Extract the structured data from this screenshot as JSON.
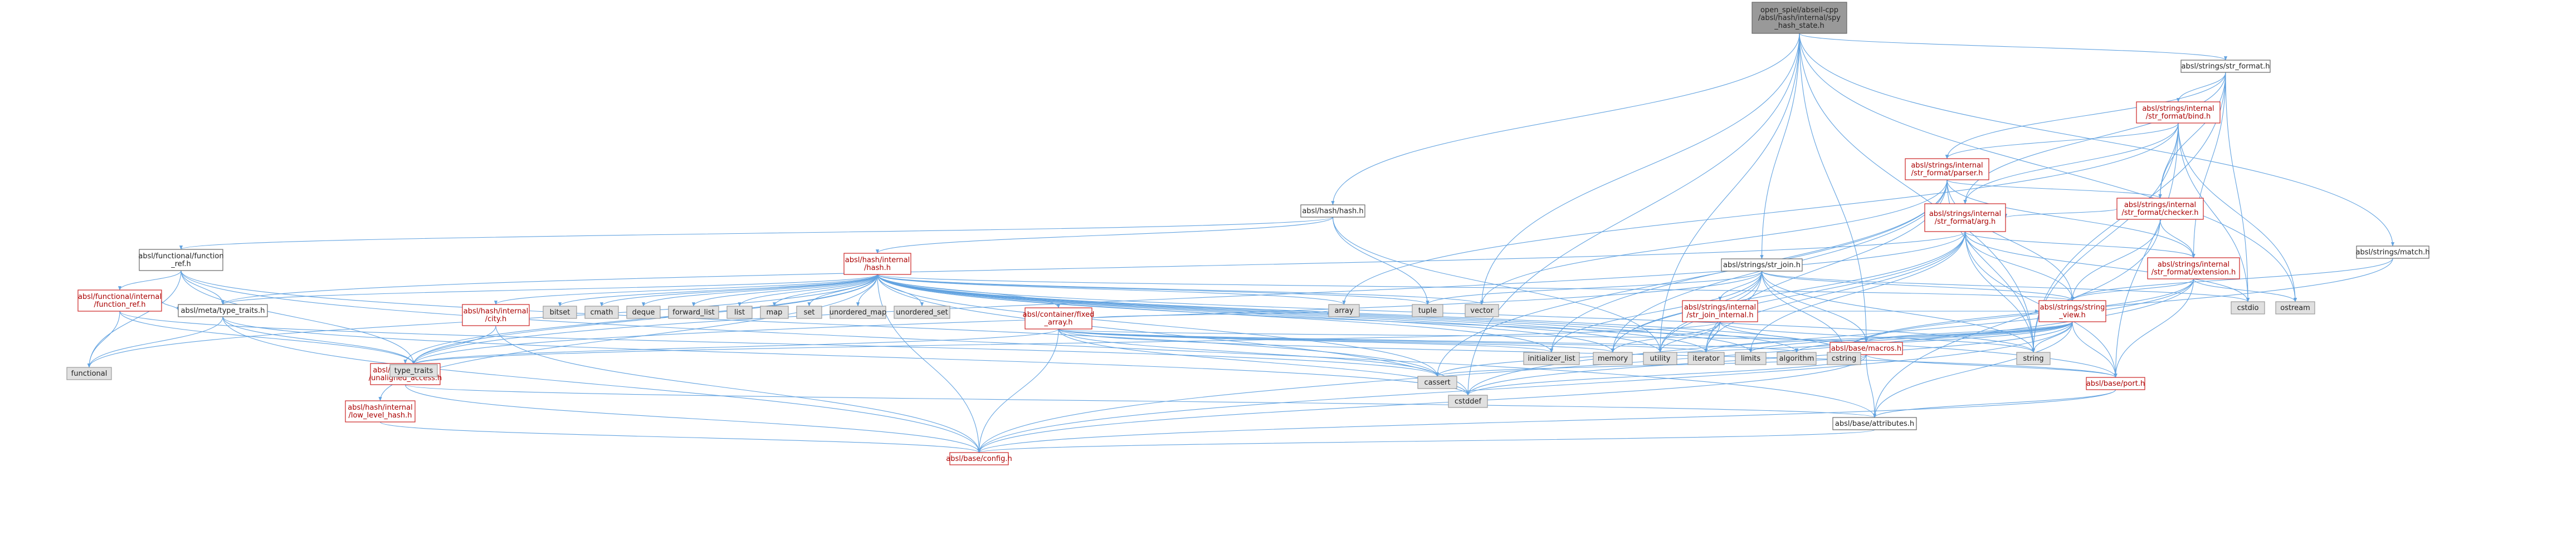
{
  "diagram": {
    "title": "",
    "nodes": [
      {
        "id": "root",
        "lines": [
          "open_spiel/abseil-cpp",
          "/absl/hash/internal/spy",
          "_hash_state.h"
        ],
        "kind": "root"
      },
      {
        "id": "str_format_h",
        "lines": [
          "absl/strings/str_format.h"
        ],
        "kind": "plain"
      },
      {
        "id": "bind_h",
        "lines": [
          "absl/strings/internal",
          "/str_format/bind.h"
        ],
        "kind": "red"
      },
      {
        "id": "parser_h",
        "lines": [
          "absl/strings/internal",
          "/str_format/parser.h"
        ],
        "kind": "red"
      },
      {
        "id": "checker_h",
        "lines": [
          "absl/strings/internal",
          "/str_format/checker.h"
        ],
        "kind": "red"
      },
      {
        "id": "arg_h",
        "lines": [
          "absl/strings/internal",
          "/str_format/arg.h"
        ],
        "kind": "red"
      },
      {
        "id": "extension_h",
        "lines": [
          "absl/strings/internal",
          "/str_format/extension.h"
        ],
        "kind": "red"
      },
      {
        "id": "hash_h",
        "lines": [
          "absl/hash/hash.h"
        ],
        "kind": "plain"
      },
      {
        "id": "function_ref_h",
        "lines": [
          "absl/functional/function",
          "_ref.h"
        ],
        "kind": "plain"
      },
      {
        "id": "internal_function_ref_h",
        "lines": [
          "absl/functional/internal",
          "/function_ref.h"
        ],
        "kind": "red"
      },
      {
        "id": "internal_hash_h",
        "lines": [
          "absl/hash/internal",
          "/hash.h"
        ],
        "kind": "red"
      },
      {
        "id": "meta_type_traits_h",
        "lines": [
          "absl/meta/type_traits.h"
        ],
        "kind": "plain"
      },
      {
        "id": "city_h",
        "lines": [
          "absl/hash/internal",
          "/city.h"
        ],
        "kind": "red"
      },
      {
        "id": "unaligned_access_h",
        "lines": [
          "absl/base/internal",
          "/unaligned_access.h"
        ],
        "kind": "red"
      },
      {
        "id": "low_level_hash_h",
        "lines": [
          "absl/hash/internal",
          "/low_level_hash.h"
        ],
        "kind": "red"
      },
      {
        "id": "fixed_array_h",
        "lines": [
          "absl/container/fixed",
          "_array.h"
        ],
        "kind": "red"
      },
      {
        "id": "str_join_h",
        "lines": [
          "absl/strings/str_join.h"
        ],
        "kind": "plain"
      },
      {
        "id": "str_join_internal_h",
        "lines": [
          "absl/strings/internal",
          "/str_join_internal.h"
        ],
        "kind": "red"
      },
      {
        "id": "string_view_h",
        "lines": [
          "absl/strings/string",
          "_view.h"
        ],
        "kind": "red"
      },
      {
        "id": "macros_h",
        "lines": [
          "absl/base/macros.h"
        ],
        "kind": "red"
      },
      {
        "id": "port_h",
        "lines": [
          "absl/base/port.h"
        ],
        "kind": "red"
      },
      {
        "id": "attributes_h",
        "lines": [
          "absl/base/attributes.h"
        ],
        "kind": "plain"
      },
      {
        "id": "config_h",
        "lines": [
          "absl/base/config.h"
        ],
        "kind": "red"
      },
      {
        "id": "match_h",
        "lines": [
          "absl/strings/match.h"
        ],
        "kind": "plain"
      },
      {
        "id": "functional",
        "lines": [
          "functional"
        ],
        "kind": "sys"
      },
      {
        "id": "type_traits",
        "lines": [
          "type_traits"
        ],
        "kind": "sys"
      },
      {
        "id": "cassert",
        "lines": [
          "cassert"
        ],
        "kind": "sys"
      },
      {
        "id": "cstddef",
        "lines": [
          "cstddef"
        ],
        "kind": "sys"
      },
      {
        "id": "bitset",
        "lines": [
          "bitset"
        ],
        "kind": "sys"
      },
      {
        "id": "cmath",
        "lines": [
          "cmath"
        ],
        "kind": "sys"
      },
      {
        "id": "deque",
        "lines": [
          "deque"
        ],
        "kind": "sys"
      },
      {
        "id": "forward_list",
        "lines": [
          "forward_list"
        ],
        "kind": "sys"
      },
      {
        "id": "list",
        "lines": [
          "list"
        ],
        "kind": "sys"
      },
      {
        "id": "map",
        "lines": [
          "map"
        ],
        "kind": "sys"
      },
      {
        "id": "set",
        "lines": [
          "set"
        ],
        "kind": "sys"
      },
      {
        "id": "unordered_map",
        "lines": [
          "unordered_map"
        ],
        "kind": "sys"
      },
      {
        "id": "unordered_set",
        "lines": [
          "unordered_set"
        ],
        "kind": "sys"
      },
      {
        "id": "array",
        "lines": [
          "array"
        ],
        "kind": "sys"
      },
      {
        "id": "tuple",
        "lines": [
          "tuple"
        ],
        "kind": "sys"
      },
      {
        "id": "vector",
        "lines": [
          "vector"
        ],
        "kind": "sys"
      },
      {
        "id": "cstdio",
        "lines": [
          "cstdio"
        ],
        "kind": "sys"
      },
      {
        "id": "ostream",
        "lines": [
          "ostream"
        ],
        "kind": "sys"
      },
      {
        "id": "initializer_list",
        "lines": [
          "initializer_list"
        ],
        "kind": "sys"
      },
      {
        "id": "memory",
        "lines": [
          "memory"
        ],
        "kind": "sys"
      },
      {
        "id": "utility",
        "lines": [
          "utility"
        ],
        "kind": "sys"
      },
      {
        "id": "iterator",
        "lines": [
          "iterator"
        ],
        "kind": "sys"
      },
      {
        "id": "limits",
        "lines": [
          "limits"
        ],
        "kind": "sys"
      },
      {
        "id": "algorithm",
        "lines": [
          "algorithm"
        ],
        "kind": "sys"
      },
      {
        "id": "cstring",
        "lines": [
          "cstring"
        ],
        "kind": "sys"
      },
      {
        "id": "string",
        "lines": [
          "string"
        ],
        "kind": "sys"
      }
    ],
    "edges": [
      [
        "root",
        "hash_h"
      ],
      [
        "root",
        "str_format_h"
      ],
      [
        "root",
        "str_join_h"
      ],
      [
        "root",
        "match_h"
      ],
      [
        "root",
        "vector"
      ],
      [
        "root",
        "ostream"
      ],
      [
        "root",
        "string"
      ],
      [
        "root",
        "cstddef"
      ],
      [
        "root",
        "utility"
      ],
      [
        "root",
        "macros_h"
      ],
      [
        "str_format_h",
        "bind_h"
      ],
      [
        "str_format_h",
        "checker_h"
      ],
      [
        "str_format_h",
        "arg_h"
      ],
      [
        "str_format_h",
        "extension_h"
      ],
      [
        "str_format_h",
        "parser_h"
      ],
      [
        "str_format_h",
        "cstdio"
      ],
      [
        "str_format_h",
        "string"
      ],
      [
        "bind_h",
        "parser_h"
      ],
      [
        "bind_h",
        "checker_h"
      ],
      [
        "bind_h",
        "arg_h"
      ],
      [
        "bind_h",
        "array"
      ],
      [
        "bind_h",
        "cstdio"
      ],
      [
        "bind_h",
        "ostream"
      ],
      [
        "bind_h",
        "string"
      ],
      [
        "bind_h",
        "port_h"
      ],
      [
        "parser_h",
        "checker_h"
      ],
      [
        "parser_h",
        "extension_h"
      ],
      [
        "parser_h",
        "vector"
      ],
      [
        "parser_h",
        "initializer_list"
      ],
      [
        "parser_h",
        "memory"
      ],
      [
        "parser_h",
        "iterator"
      ],
      [
        "parser_h",
        "cassert"
      ],
      [
        "parser_h",
        "string"
      ],
      [
        "parser_h",
        "string_view_h"
      ],
      [
        "checker_h",
        "arg_h"
      ],
      [
        "checker_h",
        "extension_h"
      ],
      [
        "checker_h",
        "attributes_h"
      ],
      [
        "checker_h",
        "string_view_h"
      ],
      [
        "arg_h",
        "extension_h"
      ],
      [
        "arg_h",
        "string_view_h"
      ],
      [
        "arg_h",
        "cstdio"
      ],
      [
        "arg_h",
        "iterator"
      ],
      [
        "arg_h",
        "memory"
      ],
      [
        "arg_h",
        "string"
      ],
      [
        "arg_h",
        "type_traits"
      ],
      [
        "arg_h",
        "utility"
      ],
      [
        "arg_h",
        "limits"
      ],
      [
        "arg_h",
        "port_h"
      ],
      [
        "arg_h",
        "meta_type_traits_h"
      ],
      [
        "extension_h",
        "cstddef"
      ],
      [
        "extension_h",
        "cstring"
      ],
      [
        "extension_h",
        "ostream"
      ],
      [
        "extension_h",
        "port_h"
      ],
      [
        "extension_h",
        "string_view_h"
      ],
      [
        "extension_h",
        "config_h"
      ],
      [
        "hash_h",
        "internal_hash_h"
      ],
      [
        "hash_h",
        "function_ref_h"
      ],
      [
        "hash_h",
        "tuple"
      ],
      [
        "hash_h",
        "utility"
      ],
      [
        "function_ref_h",
        "internal_function_ref_h"
      ],
      [
        "function_ref_h",
        "meta_type_traits_h"
      ],
      [
        "function_ref_h",
        "functional"
      ],
      [
        "function_ref_h",
        "type_traits"
      ],
      [
        "function_ref_h",
        "cassert"
      ],
      [
        "function_ref_h",
        "attributes_h"
      ],
      [
        "internal_function_ref_h",
        "functional"
      ],
      [
        "internal_function_ref_h",
        "type_traits"
      ],
      [
        "internal_function_ref_h",
        "meta_type_traits_h"
      ],
      [
        "internal_function_ref_h",
        "cassert"
      ],
      [
        "internal_hash_h",
        "meta_type_traits_h"
      ],
      [
        "internal_hash_h",
        "city_h"
      ],
      [
        "internal_hash_h",
        "unaligned_access_h"
      ],
      [
        "internal_hash_h",
        "low_level_hash_h"
      ],
      [
        "internal_hash_h",
        "fixed_array_h"
      ],
      [
        "internal_hash_h",
        "bitset"
      ],
      [
        "internal_hash_h",
        "cmath"
      ],
      [
        "internal_hash_h",
        "deque"
      ],
      [
        "internal_hash_h",
        "forward_list"
      ],
      [
        "internal_hash_h",
        "list"
      ],
      [
        "internal_hash_h",
        "map"
      ],
      [
        "internal_hash_h",
        "set"
      ],
      [
        "internal_hash_h",
        "unordered_map"
      ],
      [
        "internal_hash_h",
        "unordered_set"
      ],
      [
        "internal_hash_h",
        "array"
      ],
      [
        "internal_hash_h",
        "tuple"
      ],
      [
        "internal_hash_h",
        "vector"
      ],
      [
        "internal_hash_h",
        "functional"
      ],
      [
        "internal_hash_h",
        "type_traits"
      ],
      [
        "internal_hash_h",
        "cassert"
      ],
      [
        "internal_hash_h",
        "cstddef"
      ],
      [
        "internal_hash_h",
        "memory"
      ],
      [
        "internal_hash_h",
        "utility"
      ],
      [
        "internal_hash_h",
        "iterator"
      ],
      [
        "internal_hash_h",
        "limits"
      ],
      [
        "internal_hash_h",
        "algorithm"
      ],
      [
        "internal_hash_h",
        "cstring"
      ],
      [
        "internal_hash_h",
        "string"
      ],
      [
        "internal_hash_h",
        "string_view_h"
      ],
      [
        "internal_hash_h",
        "port_h"
      ],
      [
        "internal_hash_h",
        "config_h"
      ],
      [
        "internal_hash_h",
        "initializer_list"
      ],
      [
        "meta_type_traits_h",
        "functional"
      ],
      [
        "meta_type_traits_h",
        "type_traits"
      ],
      [
        "meta_type_traits_h",
        "cstddef"
      ],
      [
        "meta_type_traits_h",
        "config_h"
      ],
      [
        "city_h",
        "config_h"
      ],
      [
        "city_h",
        "type_traits"
      ],
      [
        "unaligned_access_h",
        "attributes_h"
      ],
      [
        "unaligned_access_h",
        "config_h"
      ],
      [
        "low_level_hash_h",
        "config_h"
      ],
      [
        "fixed_array_h",
        "type_traits"
      ],
      [
        "fixed_array_h",
        "cassert"
      ],
      [
        "fixed_array_h",
        "cstddef"
      ],
      [
        "fixed_array_h",
        "initializer_list"
      ],
      [
        "fixed_array_h",
        "memory"
      ],
      [
        "fixed_array_h",
        "iterator"
      ],
      [
        "fixed_array_h",
        "algorithm"
      ],
      [
        "fixed_array_h",
        "port_h"
      ],
      [
        "fixed_array_h",
        "macros_h"
      ],
      [
        "fixed_array_h",
        "config_h"
      ],
      [
        "fixed_array_h",
        "array"
      ],
      [
        "str_join_h",
        "str_join_internal_h"
      ],
      [
        "str_join_h",
        "string_view_h"
      ],
      [
        "str_join_h",
        "cstdio"
      ],
      [
        "str_join_h",
        "cstring"
      ],
      [
        "str_join_h",
        "initializer_list"
      ],
      [
        "str_join_h",
        "iterator"
      ],
      [
        "str_join_h",
        "string"
      ],
      [
        "str_join_h",
        "tuple"
      ],
      [
        "str_join_h",
        "type_traits"
      ],
      [
        "str_join_h",
        "utility"
      ],
      [
        "str_join_h",
        "memory"
      ],
      [
        "str_join_h",
        "macros_h"
      ],
      [
        "str_join_internal_h",
        "cstring"
      ],
      [
        "str_join_internal_h",
        "iterator"
      ],
      [
        "str_join_internal_h",
        "memory"
      ],
      [
        "str_join_internal_h",
        "string"
      ],
      [
        "str_join_internal_h",
        "type_traits"
      ],
      [
        "str_join_internal_h",
        "utility"
      ],
      [
        "str_join_internal_h",
        "string_view_h"
      ],
      [
        "string_view_h",
        "algorithm"
      ],
      [
        "string_view_h",
        "cassert"
      ],
      [
        "string_view_h",
        "cstddef"
      ],
      [
        "string_view_h",
        "cstring"
      ],
      [
        "string_view_h",
        "iterator"
      ],
      [
        "string_view_h",
        "limits"
      ],
      [
        "string_view_h",
        "string"
      ],
      [
        "string_view_h",
        "attributes_h"
      ],
      [
        "string_view_h",
        "macros_h"
      ],
      [
        "string_view_h",
        "port_h"
      ],
      [
        "string_view_h",
        "config_h"
      ],
      [
        "macros_h",
        "cassert"
      ],
      [
        "macros_h",
        "cstddef"
      ],
      [
        "macros_h",
        "attributes_h"
      ],
      [
        "macros_h",
        "config_h"
      ],
      [
        "macros_h",
        "port_h"
      ],
      [
        "port_h",
        "attributes_h"
      ],
      [
        "port_h",
        "config_h"
      ],
      [
        "attributes_h",
        "config_h"
      ],
      [
        "match_h",
        "cstring"
      ],
      [
        "match_h",
        "string_view_h"
      ]
    ]
  },
  "colors": {
    "edge": "#63a3e0",
    "red_border": "#cc2222",
    "root_fill": "#999999",
    "sys_fill": "#e0e0e0"
  }
}
